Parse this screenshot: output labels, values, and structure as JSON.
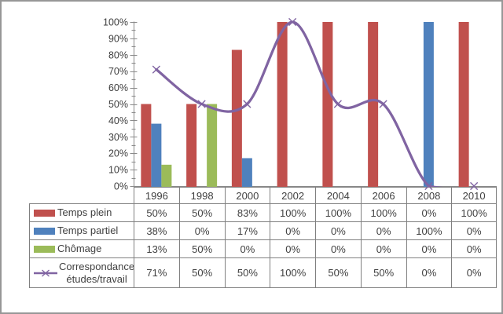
{
  "chart_data": {
    "type": "combo-bar-line",
    "title": "",
    "xlabel": "",
    "ylabel": "",
    "categories": [
      "1996",
      "1998",
      "2000",
      "2002",
      "2004",
      "2006",
      "2008",
      "2010"
    ],
    "series": [
      {
        "name": "Temps plein",
        "type": "bar",
        "color": "#C0504D",
        "values": [
          50,
          50,
          83,
          100,
          100,
          100,
          0,
          100
        ]
      },
      {
        "name": "Temps partiel",
        "type": "bar",
        "color": "#4F81BD",
        "values": [
          38,
          0,
          17,
          0,
          0,
          0,
          100,
          0
        ]
      },
      {
        "name": "Chômage",
        "type": "bar",
        "color": "#9BBB59",
        "values": [
          13,
          50,
          0,
          0,
          0,
          0,
          0,
          0
        ]
      },
      {
        "name": "Correspondance études/travail",
        "type": "line",
        "color": "#8064A2",
        "marker": "x",
        "smooth": true,
        "values": [
          71,
          50,
          50,
          100,
          50,
          50,
          0,
          0
        ]
      }
    ],
    "ylim": [
      0,
      100
    ],
    "ytick_step": 10,
    "ytick_minor_step": 5,
    "ytick_labels": [
      "0%",
      "10%",
      "20%",
      "30%",
      "40%",
      "50%",
      "60%",
      "70%",
      "80%",
      "90%",
      "100%"
    ],
    "grid": false,
    "legend_position": "data-table-left",
    "axis_color": "#8A8A8A",
    "text_color": "#404040"
  },
  "table": {
    "rows": [
      {
        "label": "Temps plein",
        "values": [
          "50%",
          "50%",
          "83%",
          "100%",
          "100%",
          "100%",
          "0%",
          "100%"
        ]
      },
      {
        "label": "Temps partiel",
        "values": [
          "38%",
          "0%",
          "17%",
          "0%",
          "0%",
          "0%",
          "100%",
          "0%"
        ]
      },
      {
        "label": "Chômage",
        "values": [
          "13%",
          "50%",
          "0%",
          "0%",
          "0%",
          "0%",
          "0%",
          "0%"
        ]
      },
      {
        "label": "Correspondance études/travail",
        "values": [
          "71%",
          "50%",
          "50%",
          "100%",
          "50%",
          "50%",
          "0%",
          "0%"
        ]
      }
    ]
  }
}
